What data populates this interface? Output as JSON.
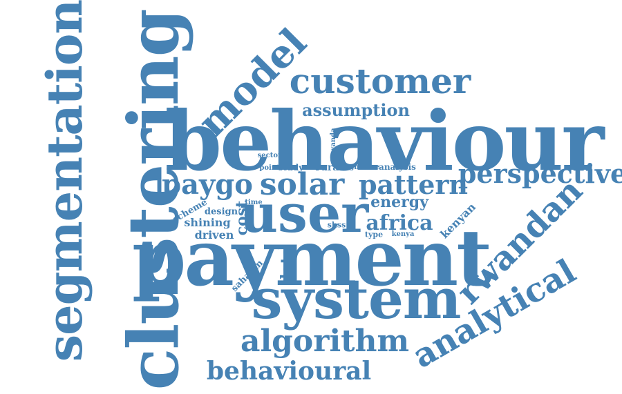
{
  "color": "#4682b4",
  "words": {
    "behaviour": "behaviour",
    "payment": "payment",
    "clustering": "clustering",
    "segmentation": "segmentation",
    "user": "user",
    "system": "system",
    "customer": "customer",
    "model": "model",
    "solar": "solar",
    "paygo": "paygo",
    "pattern": "pattern",
    "perspective": "perspective",
    "rwandan": "rwandan",
    "analytical": "analytical",
    "algorithm": "algorithm",
    "behavioural": "behavioural",
    "assumption": "assumption",
    "africa": "africa",
    "energy": "energy",
    "kenyan": "kenyan",
    "data": "data",
    "cost": "cost",
    "shining": "shining",
    "driven": "driven",
    "scheme": "scheme",
    "design": "design",
    "saharan": "saharan",
    "sector": "sector",
    "rwanda": "rwanda",
    "point": "point",
    "study": "study",
    "rural": "rural",
    "light": "light",
    "more": "more",
    "analysis": "analysis",
    "time": "time",
    "shss": "shss",
    "type": "type",
    "kenya": "kenya",
    "tiny": "sec"
  }
}
